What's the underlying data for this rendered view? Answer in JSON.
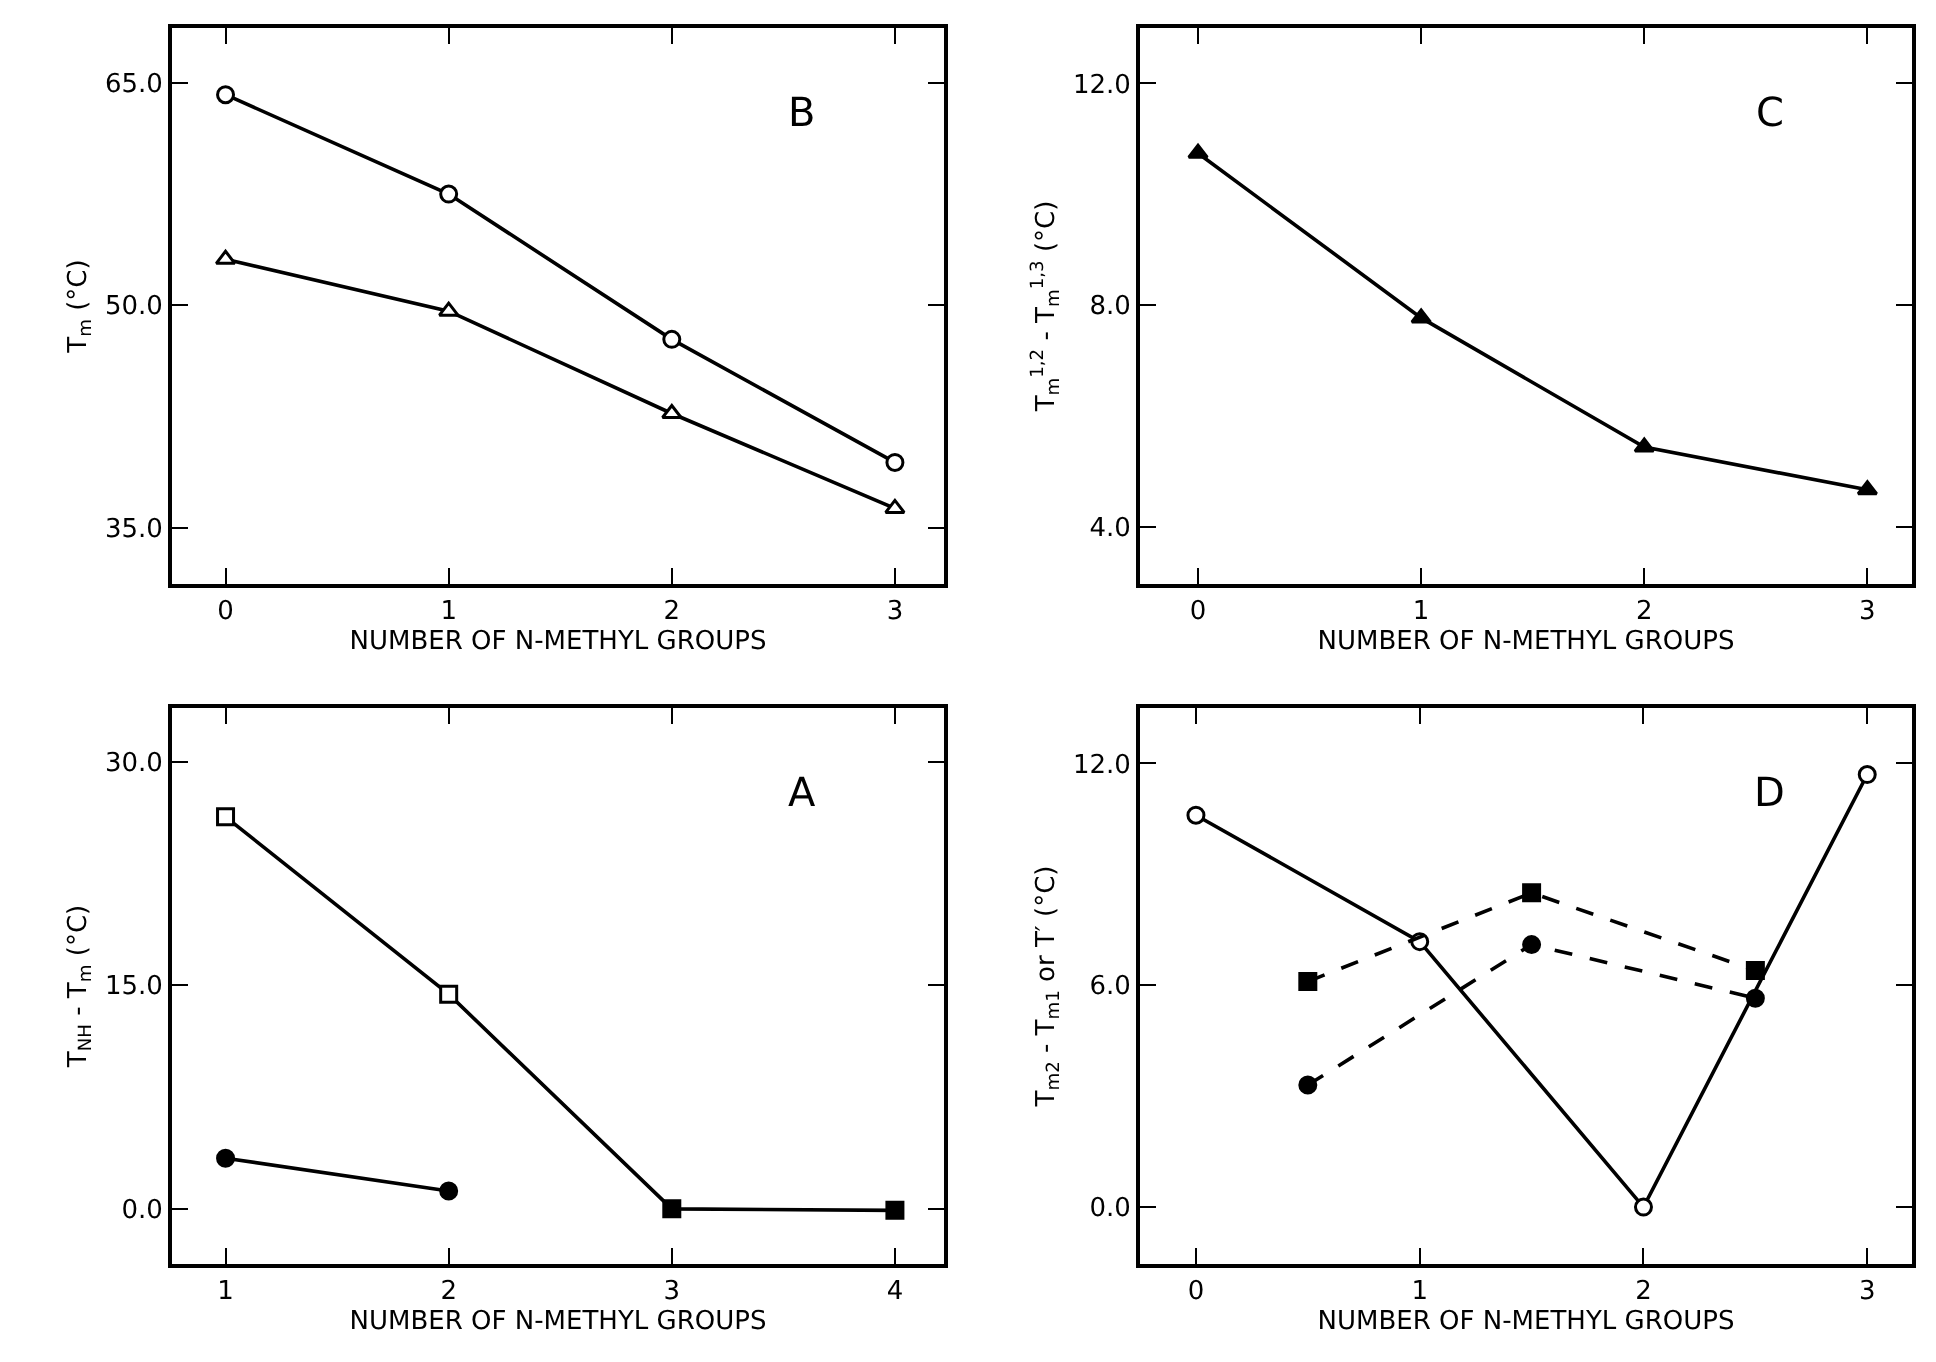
{
  "chart_data": [
    {
      "type": "line",
      "xlabel": "NUMBER OF N-METHYL GROUPS",
      "ylabel": "T$_{m}$ (°C)",
      "annotations": [
        "B"
      ],
      "x": [
        0,
        1,
        2,
        3
      ],
      "xlim": [
        -0.24,
        3.22
      ],
      "xticks": [
        0,
        1,
        2,
        3
      ],
      "ylim": [
        31.2,
        68.7
      ],
      "yticks": [
        {
          "value": 35,
          "label": "35.0"
        },
        {
          "value": 50,
          "label": "50.0"
        },
        {
          "value": 65,
          "label": "65.0"
        }
      ],
      "series": [
        {
          "color": "#000000",
          "marker": "circle",
          "line_style": "solid",
          "colors": [
            "#ffffff",
            "#ffffff",
            "#ffffff",
            "#ffffff"
          ],
          "values": [
            64.2,
            57.5,
            47.7,
            39.4
          ]
        },
        {
          "color": "#000000",
          "marker": "triangle",
          "line_style": "solid",
          "colors": [
            "#ffffff",
            "#ffffff",
            "#ffffff",
            "#ffffff"
          ],
          "values": [
            53.1,
            49.6,
            42.7,
            36.3
          ]
        }
      ]
    },
    {
      "type": "line",
      "xlabel": "NUMBER OF N-METHYL GROUPS",
      "ylabel": "T$_{m}$$^{1,2}$ - T$_{m}$$^{1,3}$ (°C)",
      "annotations": [
        "C"
      ],
      "x": [
        0,
        1,
        2,
        3
      ],
      "xlim": [
        -0.26,
        3.2
      ],
      "xticks": [
        0,
        1,
        2,
        3
      ],
      "ylim": [
        2.97,
        13.0
      ],
      "yticks": [
        {
          "value": 4,
          "label": "4.0"
        },
        {
          "value": 8,
          "label": "8.0"
        },
        {
          "value": 12,
          "label": "12.0"
        }
      ],
      "series": [
        {
          "color": "#000000",
          "marker": "triangle",
          "line_style": "solid",
          "colors": [
            "#000000",
            "#000000",
            "#000000",
            "#000000"
          ],
          "values": [
            10.74,
            7.77,
            5.44,
            4.67
          ]
        }
      ]
    },
    {
      "type": "line",
      "xlabel": "NUMBER OF N-METHYL GROUPS",
      "ylabel": "T$_{NH}$ - T$_{m}$ (°C)",
      "annotations": [
        "A"
      ],
      "x": [
        1,
        2,
        3,
        4
      ],
      "xlim": [
        0.76,
        4.22
      ],
      "xticks": [
        1,
        2,
        3,
        4
      ],
      "ylim": [
        -3.7,
        33.6
      ],
      "yticks": [
        {
          "value": 0,
          "label": "0.0"
        },
        {
          "value": 15,
          "label": "15.0"
        },
        {
          "value": 30,
          "label": "30.0"
        }
      ],
      "series": [
        {
          "color": "#000000",
          "marker": "circle",
          "line_style": "solid",
          "x": [
            1,
            2
          ],
          "colors": [
            "#000000",
            "#000000"
          ],
          "values": [
            3.4,
            1.2
          ]
        },
        {
          "color": "#000000",
          "marker": "square",
          "line_style": "solid",
          "colors": [
            "#ffffff",
            "#ffffff",
            "#000000",
            "#000000"
          ],
          "values": [
            26.3,
            14.4,
            0,
            -0.1
          ]
        }
      ]
    },
    {
      "type": "line",
      "xlabel": "NUMBER OF N-METHYL GROUPS",
      "ylabel": "T$_{m2}$ - T$_{m1}$ or T′ (°C)",
      "annotations": [
        "D"
      ],
      "x": [
        0,
        1,
        2,
        3
      ],
      "xlim": [
        -0.25,
        3.2
      ],
      "xticks": [
        0,
        1,
        2,
        3
      ],
      "ylim": [
        -1.54,
        13.5
      ],
      "yticks": [
        {
          "value": 0,
          "label": "0.0"
        },
        {
          "value": 6,
          "label": "6.0"
        },
        {
          "value": 12,
          "label": "12.0"
        }
      ],
      "series": [
        {
          "color": "#000000",
          "marker": "circle",
          "line_style": "solid",
          "colors": [
            "#ffffff",
            "#ffffff",
            "#ffffff",
            "#ffffff"
          ],
          "values": [
            10.6,
            7.18,
            0.0,
            11.7
          ]
        },
        {
          "color": "#000000",
          "marker": "square",
          "line_style": "dashed",
          "x": [
            0.5,
            1.5,
            2.5
          ],
          "colors": [
            "#000000",
            "#000000",
            "#000000"
          ],
          "values": [
            6.1,
            8.5,
            6.4
          ]
        },
        {
          "color": "#000000",
          "marker": "circle",
          "line_style": "dashed",
          "x": [
            0.5,
            1.5,
            2.5
          ],
          "colors": [
            "#000000",
            "#000000",
            "#000000"
          ],
          "values": [
            3.3,
            7.1,
            5.65
          ]
        }
      ]
    }
  ]
}
